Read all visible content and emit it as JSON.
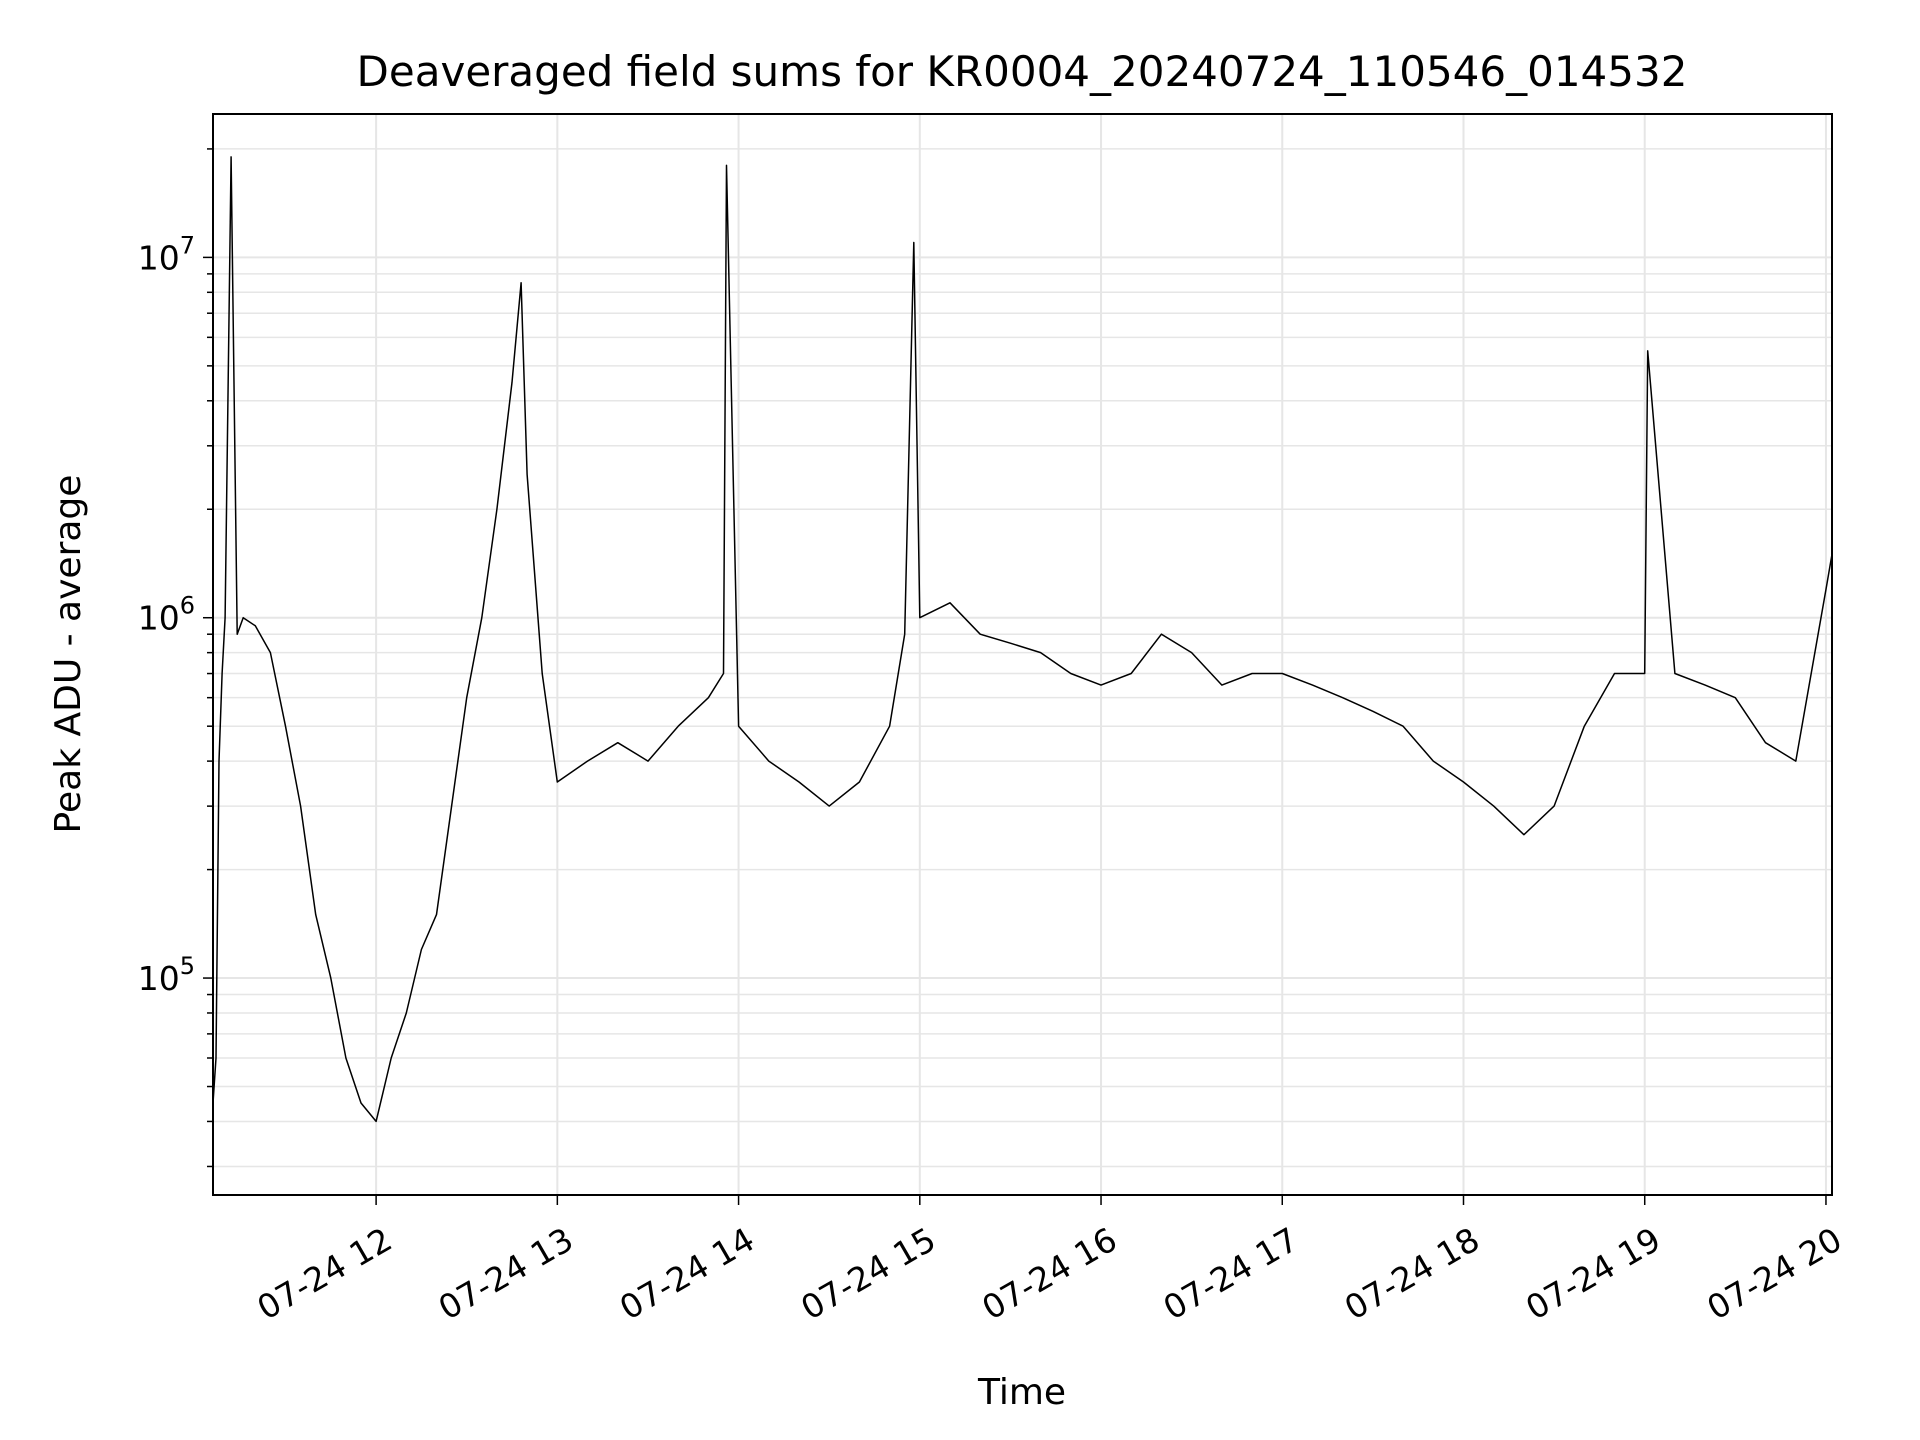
{
  "chart_data": {
    "type": "line",
    "title": "Deaveraged field sums for KR0004_20240724_110546_014532",
    "xlabel": "Time",
    "ylabel": "Peak ADU - average",
    "y_scale": "log",
    "grid": true,
    "line_color": "#000000",
    "grid_color": "#e6e6e6",
    "xlim": [
      "2024-07-24 11:06",
      "2024-07-24 20:02"
    ],
    "ylim": [
      25000,
      25000000
    ],
    "x_ticks": [
      {
        "value": "2024-07-24 12:00",
        "label": "07-24 12"
      },
      {
        "value": "2024-07-24 13:00",
        "label": "07-24 13"
      },
      {
        "value": "2024-07-24 14:00",
        "label": "07-24 14"
      },
      {
        "value": "2024-07-24 15:00",
        "label": "07-24 15"
      },
      {
        "value": "2024-07-24 16:00",
        "label": "07-24 16"
      },
      {
        "value": "2024-07-24 17:00",
        "label": "07-24 17"
      },
      {
        "value": "2024-07-24 18:00",
        "label": "07-24 18"
      },
      {
        "value": "2024-07-24 19:00",
        "label": "07-24 19"
      },
      {
        "value": "2024-07-24 20:00",
        "label": "07-24 20"
      }
    ],
    "y_ticks": [
      {
        "value": 100000,
        "base": "10",
        "exp": "5"
      },
      {
        "value": 1000000,
        "base": "10",
        "exp": "6"
      },
      {
        "value": 10000000,
        "base": "10",
        "exp": "7"
      }
    ],
    "series": [
      {
        "x": [
          "2024-07-24 11:06",
          "2024-07-24 11:07",
          "2024-07-24 11:08",
          "2024-07-24 11:09",
          "2024-07-24 11:10",
          "2024-07-24 11:12",
          "2024-07-24 11:14",
          "2024-07-24 11:16",
          "2024-07-24 11:20",
          "2024-07-24 11:25",
          "2024-07-24 11:30",
          "2024-07-24 11:35",
          "2024-07-24 11:40",
          "2024-07-24 11:45",
          "2024-07-24 11:50",
          "2024-07-24 11:55",
          "2024-07-24 12:00",
          "2024-07-24 12:05",
          "2024-07-24 12:10",
          "2024-07-24 12:15",
          "2024-07-24 12:20",
          "2024-07-24 12:25",
          "2024-07-24 12:30",
          "2024-07-24 12:35",
          "2024-07-24 12:40",
          "2024-07-24 12:45",
          "2024-07-24 12:48",
          "2024-07-24 12:50",
          "2024-07-24 12:55",
          "2024-07-24 13:00",
          "2024-07-24 13:10",
          "2024-07-24 13:20",
          "2024-07-24 13:30",
          "2024-07-24 13:40",
          "2024-07-24 13:50",
          "2024-07-24 13:55",
          "2024-07-24 13:56",
          "2024-07-24 14:00",
          "2024-07-24 14:10",
          "2024-07-24 14:20",
          "2024-07-24 14:30",
          "2024-07-24 14:40",
          "2024-07-24 14:50",
          "2024-07-24 14:55",
          "2024-07-24 14:58",
          "2024-07-24 15:00",
          "2024-07-24 15:10",
          "2024-07-24 15:20",
          "2024-07-24 15:30",
          "2024-07-24 15:40",
          "2024-07-24 15:50",
          "2024-07-24 16:00",
          "2024-07-24 16:10",
          "2024-07-24 16:20",
          "2024-07-24 16:30",
          "2024-07-24 16:40",
          "2024-07-24 16:50",
          "2024-07-24 17:00",
          "2024-07-24 17:10",
          "2024-07-24 17:20",
          "2024-07-24 17:30",
          "2024-07-24 17:40",
          "2024-07-24 17:50",
          "2024-07-24 18:00",
          "2024-07-24 18:10",
          "2024-07-24 18:20",
          "2024-07-24 18:30",
          "2024-07-24 18:40",
          "2024-07-24 18:50",
          "2024-07-24 19:00",
          "2024-07-24 19:01",
          "2024-07-24 19:10",
          "2024-07-24 19:20",
          "2024-07-24 19:30",
          "2024-07-24 19:40",
          "2024-07-24 19:50",
          "2024-07-24 20:00",
          "2024-07-24 20:02"
        ],
        "values": [
          45000,
          60000,
          400000,
          700000,
          1000000,
          19000000,
          900000,
          1000000,
          950000,
          800000,
          500000,
          300000,
          150000,
          100000,
          60000,
          45000,
          40000,
          60000,
          80000,
          120000,
          150000,
          300000,
          600000,
          1000000,
          2000000,
          4500000,
          8500000,
          2500000,
          700000,
          350000,
          400000,
          450000,
          400000,
          500000,
          600000,
          700000,
          18000000,
          500000,
          400000,
          350000,
          300000,
          350000,
          500000,
          900000,
          11000000,
          1000000,
          1100000,
          900000,
          850000,
          800000,
          700000,
          650000,
          700000,
          900000,
          800000,
          650000,
          700000,
          700000,
          650000,
          600000,
          550000,
          500000,
          400000,
          350000,
          300000,
          250000,
          300000,
          500000,
          700000,
          700000,
          5500000,
          700000,
          650000,
          600000,
          450000,
          400000,
          1200000,
          1500000
        ]
      }
    ]
  }
}
